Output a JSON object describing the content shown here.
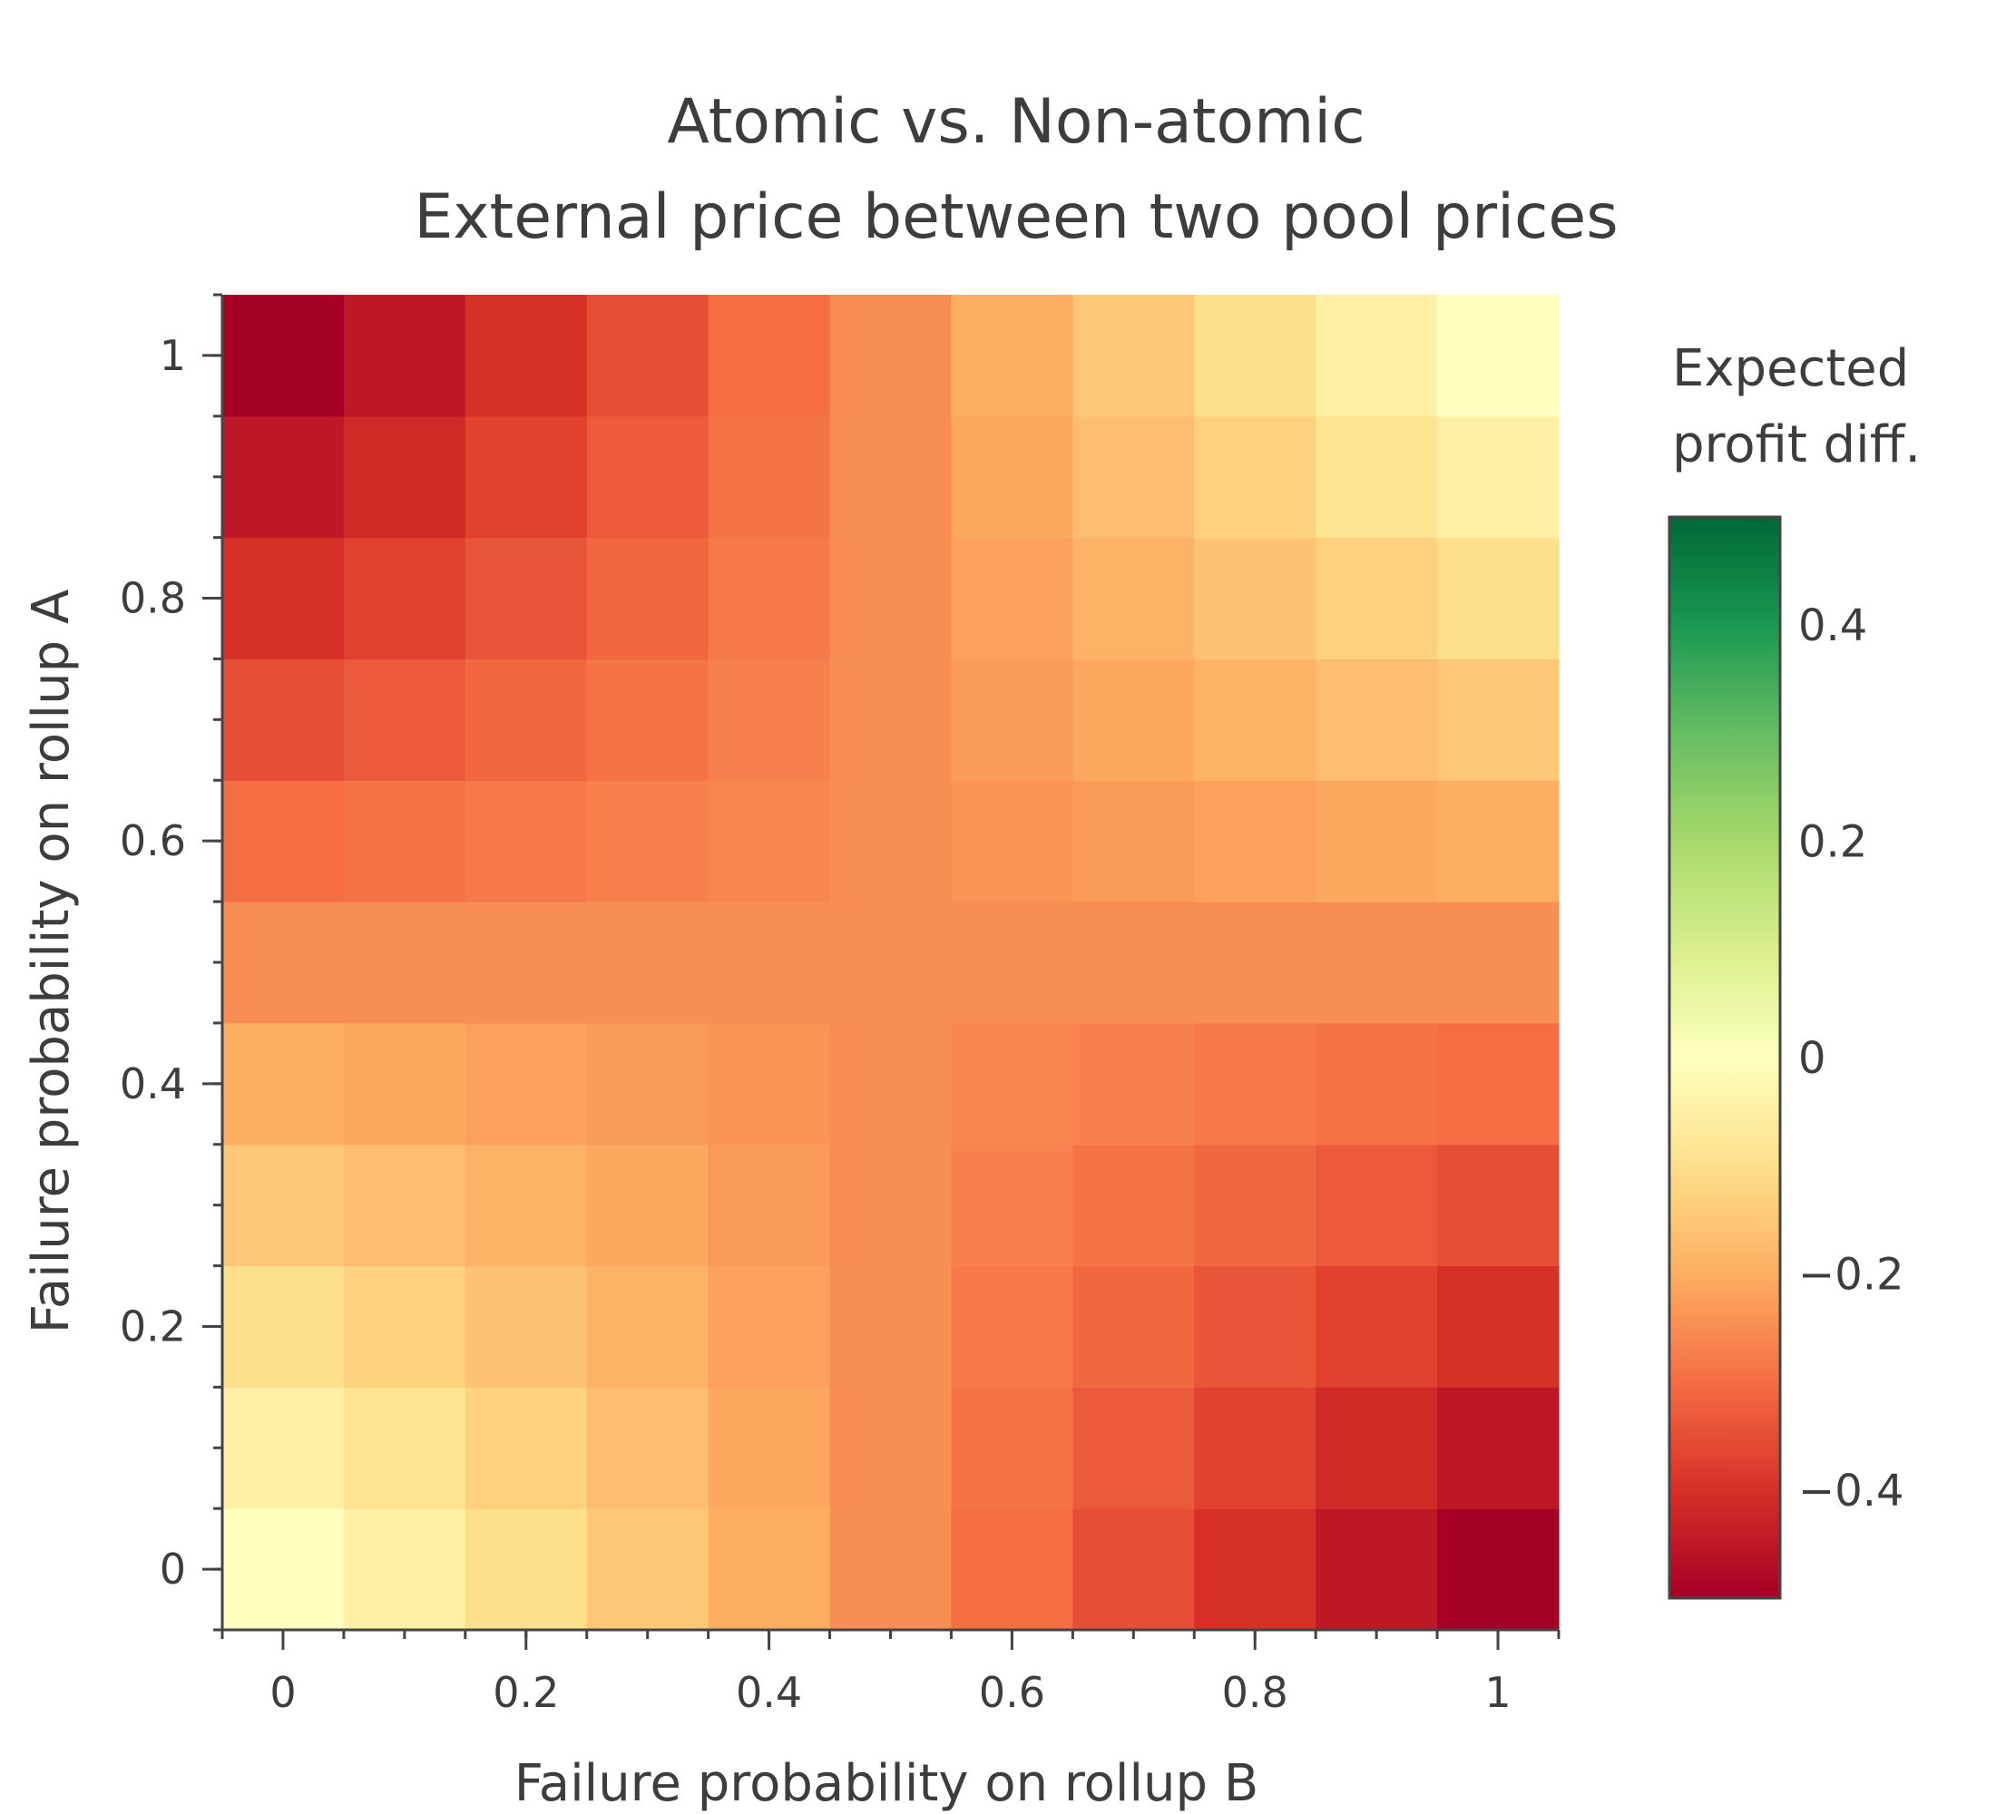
{
  "chart_data": {
    "type": "heatmap",
    "title": "Atomic vs. Non-atomic",
    "subtitle": "External price between two pool prices",
    "xlabel": "Failure probability on rollup B",
    "ylabel": "Failure probability on rollup A",
    "x": [
      0,
      0.1,
      0.2,
      0.3,
      0.4,
      0.5,
      0.6,
      0.7,
      0.8,
      0.9,
      1
    ],
    "y": [
      0,
      0.1,
      0.2,
      0.3,
      0.4,
      0.5,
      0.6,
      0.7,
      0.8,
      0.9,
      1
    ],
    "xlim": [
      -0.05,
      1.05
    ],
    "ylim": [
      -0.05,
      1.05
    ],
    "xticks": [
      "0",
      "0.2",
      "0.4",
      "0.6",
      "0.8",
      "1"
    ],
    "yticks": [
      "0",
      "0.2",
      "0.4",
      "0.6",
      "0.8",
      "1"
    ],
    "colorbar": {
      "title_lines": [
        "Expected",
        "profit diff."
      ],
      "range": [
        -0.5,
        0.5
      ],
      "ticks": [
        "0.4",
        "0.2",
        "0",
        "−0.2",
        "−0.4"
      ],
      "tick_values": [
        0.4,
        0.2,
        0,
        -0.2,
        -0.4
      ],
      "colorscale": [
        "#a50026",
        "#d73027",
        "#f46d43",
        "#fdae61",
        "#fee08b",
        "#ffffbf",
        "#d9ef8b",
        "#a6d96a",
        "#66bd63",
        "#1a9850",
        "#006837"
      ]
    },
    "z_formula_note_removed": true,
    "z": [
      [
        0.0,
        -0.05,
        -0.1,
        -0.15,
        -0.2,
        -0.25,
        -0.3,
        -0.35,
        -0.4,
        -0.45,
        -0.5
      ],
      [
        -0.05,
        -0.09,
        -0.13,
        -0.17,
        -0.21,
        -0.25,
        -0.29,
        -0.33,
        -0.37,
        -0.41,
        -0.45
      ],
      [
        -0.1,
        -0.13,
        -0.16,
        -0.19,
        -0.22,
        -0.25,
        -0.28,
        -0.31,
        -0.34,
        -0.37,
        -0.4
      ],
      [
        -0.15,
        -0.17,
        -0.19,
        -0.21,
        -0.23,
        -0.25,
        -0.27,
        -0.29,
        -0.31,
        -0.33,
        -0.35
      ],
      [
        -0.2,
        -0.21,
        -0.22,
        -0.23,
        -0.24,
        -0.25,
        -0.26,
        -0.27,
        -0.28,
        -0.29,
        -0.3
      ],
      [
        -0.25,
        -0.25,
        -0.25,
        -0.25,
        -0.25,
        -0.25,
        -0.25,
        -0.25,
        -0.25,
        -0.25,
        -0.25
      ],
      [
        -0.3,
        -0.29,
        -0.28,
        -0.27,
        -0.26,
        -0.25,
        -0.24,
        -0.23,
        -0.22,
        -0.21,
        -0.2
      ],
      [
        -0.35,
        -0.33,
        -0.31,
        -0.29,
        -0.27,
        -0.25,
        -0.23,
        -0.21,
        -0.19,
        -0.17,
        -0.15
      ],
      [
        -0.4,
        -0.37,
        -0.34,
        -0.31,
        -0.28,
        -0.25,
        -0.22,
        -0.19,
        -0.16,
        -0.13,
        -0.1
      ],
      [
        -0.45,
        -0.41,
        -0.37,
        -0.33,
        -0.29,
        -0.25,
        -0.21,
        -0.17,
        -0.13,
        -0.09,
        -0.05
      ],
      [
        -0.5,
        -0.45,
        -0.4,
        -0.35,
        -0.3,
        -0.25,
        -0.2,
        -0.15,
        -0.1,
        -0.05,
        0.0
      ]
    ]
  }
}
